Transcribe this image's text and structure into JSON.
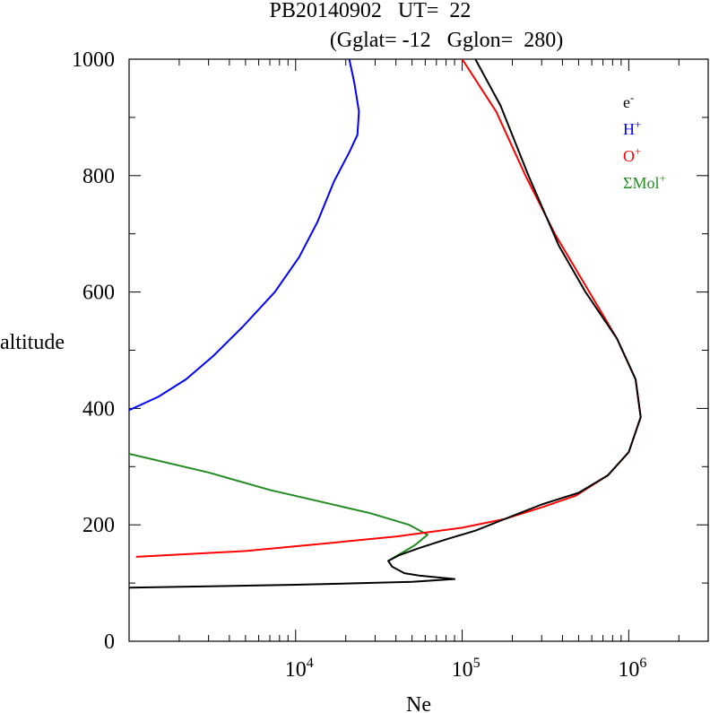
{
  "chart_data": {
    "type": "line",
    "title_line1": "PB20140902   UT=  22",
    "title_line2": "(Gglat= -12   Gglon=  280)",
    "xlabel": "Ne",
    "ylabel": "altitude",
    "xscale": "log",
    "xlim": [
      1000,
      3000000
    ],
    "ylim": [
      0,
      1000
    ],
    "y_ticks": [
      {
        "value": 0,
        "label": "0"
      },
      {
        "value": 200,
        "label": "200"
      },
      {
        "value": 400,
        "label": "400"
      },
      {
        "value": 600,
        "label": "600"
      },
      {
        "value": 800,
        "label": "800"
      },
      {
        "value": 1000,
        "label": "1000"
      }
    ],
    "x_ticks": [
      {
        "value": 10000,
        "label_base": "10",
        "label_exp": "4"
      },
      {
        "value": 100000,
        "label_base": "10",
        "label_exp": "5"
      },
      {
        "value": 1000000,
        "label_base": "10",
        "label_exp": "6"
      }
    ],
    "legend_position": "top-right",
    "series": [
      {
        "name": "e-",
        "label_base": "e",
        "label_sup": "-",
        "color": "#000000",
        "points": [
          [
            1000,
            92
          ],
          [
            10000,
            97
          ],
          [
            50000,
            102
          ],
          [
            90000,
            107
          ],
          [
            55000,
            113
          ],
          [
            45000,
            117
          ],
          [
            38000,
            128
          ],
          [
            36000,
            138
          ],
          [
            42000,
            148
          ],
          [
            55000,
            160
          ],
          [
            80000,
            175
          ],
          [
            120000,
            190
          ],
          [
            180000,
            210
          ],
          [
            300000,
            235
          ],
          [
            500000,
            255
          ],
          [
            750000,
            285
          ],
          [
            1000000,
            325
          ],
          [
            1180000,
            385
          ],
          [
            1100000,
            450
          ],
          [
            850000,
            520
          ],
          [
            550000,
            600
          ],
          [
            380000,
            680
          ],
          [
            250000,
            800
          ],
          [
            170000,
            920
          ],
          [
            120000,
            1000
          ]
        ]
      },
      {
        "name": "H+",
        "label_base": "H",
        "label_sup": "+",
        "color": "#0000ff",
        "points": [
          [
            1000,
            397
          ],
          [
            1500,
            420
          ],
          [
            2200,
            450
          ],
          [
            3200,
            490
          ],
          [
            4800,
            540
          ],
          [
            7500,
            600
          ],
          [
            10500,
            660
          ],
          [
            13500,
            720
          ],
          [
            17000,
            790
          ],
          [
            21000,
            840
          ],
          [
            23500,
            870
          ],
          [
            24000,
            910
          ],
          [
            22500,
            960
          ],
          [
            21000,
            1000
          ]
        ]
      },
      {
        "name": "O+",
        "label_base": "O",
        "label_sup": "+",
        "color": "#ff0000",
        "points": [
          [
            1100,
            145
          ],
          [
            5000,
            155
          ],
          [
            15000,
            168
          ],
          [
            40000,
            180
          ],
          [
            100000,
            195
          ],
          [
            180000,
            210
          ],
          [
            300000,
            230
          ],
          [
            480000,
            250
          ],
          [
            750000,
            285
          ],
          [
            1000000,
            325
          ],
          [
            1180000,
            385
          ],
          [
            1100000,
            450
          ],
          [
            850000,
            520
          ],
          [
            580000,
            600
          ],
          [
            360000,
            700
          ],
          [
            240000,
            800
          ],
          [
            160000,
            910
          ],
          [
            100000,
            1000
          ]
        ]
      },
      {
        "name": "ΣMol+",
        "label_base": "ΣMol",
        "label_sup": "+",
        "color": "#228b22",
        "points": [
          [
            1000,
            322
          ],
          [
            3000,
            290
          ],
          [
            7000,
            260
          ],
          [
            14000,
            240
          ],
          [
            28000,
            220
          ],
          [
            48000,
            200
          ],
          [
            62000,
            183
          ],
          [
            52000,
            165
          ],
          [
            36000,
            138
          ]
        ]
      }
    ]
  }
}
